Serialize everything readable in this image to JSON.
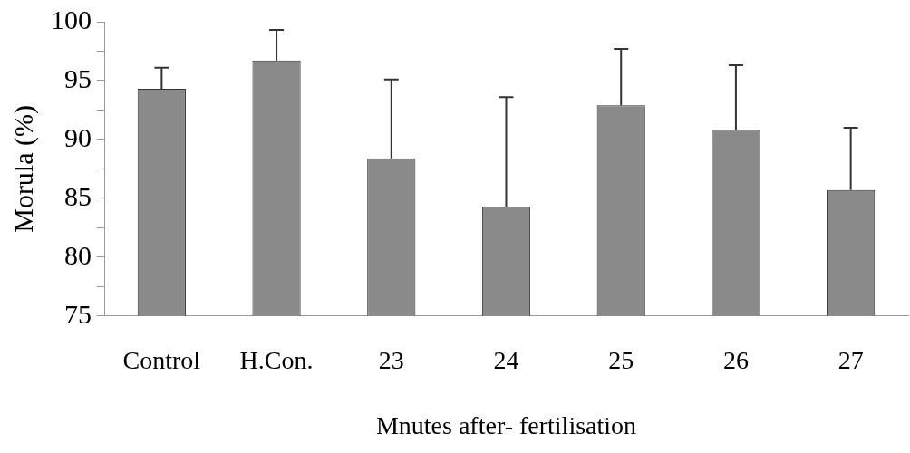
{
  "chart_data": {
    "type": "bar",
    "xlabel": "Mnutes after- fertilisation",
    "ylabel": "Morula (%)",
    "categories": [
      "Control",
      "H.Con.",
      "23",
      "24",
      "25",
      "26",
      "27"
    ],
    "values": [
      94.3,
      96.7,
      88.4,
      84.3,
      92.9,
      90.8,
      85.7
    ],
    "errors": [
      [
        94.3,
        96.1
      ],
      [
        96.7,
        99.3
      ],
      [
        88.4,
        95.1
      ],
      [
        84.3,
        93.6
      ],
      [
        92.9,
        97.7
      ],
      [
        90.8,
        96.3
      ],
      [
        85.7,
        91.0
      ]
    ],
    "color": "#8a8a8a",
    "ylim": [
      75,
      100
    ],
    "yticks": [
      75,
      {
        "value": 77.5,
        "label": null
      },
      80,
      {
        "value": 82.5,
        "label": null
      },
      85,
      {
        "value": 87.5,
        "label": null
      },
      90,
      {
        "value": 92.5,
        "label": null
      },
      95,
      {
        "value": 97.5,
        "label": null
      },
      100
    ],
    "grid": false,
    "legend": false
  }
}
